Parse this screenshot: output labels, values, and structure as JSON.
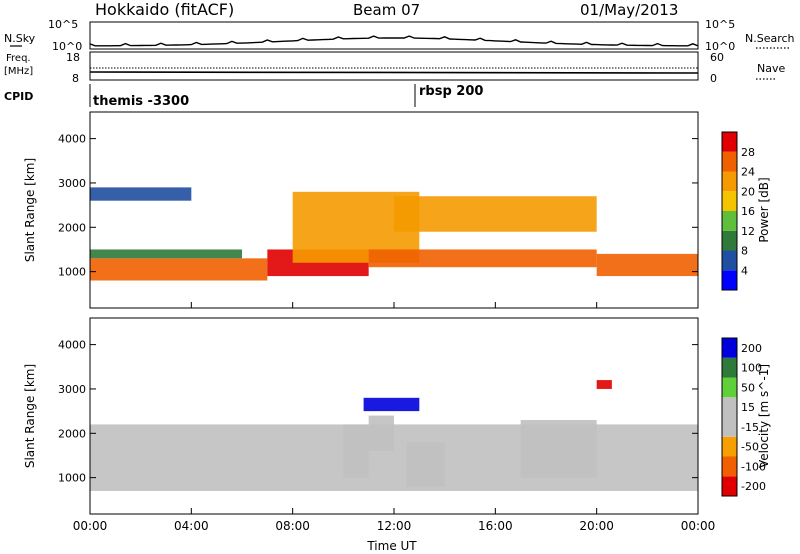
{
  "header": {
    "station": "Hokkaido (fitACF)",
    "beam": "Beam 07",
    "date": "01/May/2013"
  },
  "top_panels": {
    "nsky_label": "N.Sky",
    "nsearch_label": "N.Search",
    "nsky_ticks": [
      "10^5",
      "10^0"
    ],
    "nsearch_ticks": [
      "10^5",
      "10^0"
    ],
    "freq_label_1": "Freq.",
    "freq_label_2": "[MHz]",
    "freq_ticks": [
      "18",
      "8"
    ],
    "nave_label": "Nave",
    "nave_ticks": [
      "60",
      "0"
    ],
    "cpid_label": "CPID",
    "cpid_entries": [
      "themis -3300",
      "rbsp 200"
    ]
  },
  "colors": {
    "power_scale": [
      "#0000ff",
      "#1f4fa0",
      "#2f7a3a",
      "#5fbf3a",
      "#f5c400",
      "#f59a00",
      "#f06000",
      "#e00000"
    ],
    "velocity_scale": [
      "#e00000",
      "#f06000",
      "#f5a000",
      "#c0c0c0",
      "#c0c0c0",
      "#5fcf3a",
      "#2f7a3a",
      "#0000dd"
    ],
    "ground_scatter": "#c0c0c0"
  },
  "chart_data": [
    {
      "type": "heatmap",
      "title": "",
      "xlabel": "Time UT",
      "ylabel": "Slant Range [km]",
      "colorbar_label": "Power [dB]",
      "colorbar_ticks": [
        "4",
        "8",
        "12",
        "16",
        "20",
        "24",
        "28"
      ],
      "colorbar_range": [
        0,
        32
      ],
      "xlim": [
        0,
        24
      ],
      "ylim": [
        180,
        4600
      ],
      "yticks": [
        "1000",
        "2000",
        "3000",
        "4000"
      ],
      "xticks": [
        "00:00",
        "04:00",
        "08:00",
        "12:00",
        "16:00",
        "20:00",
        "00:00"
      ],
      "bands": [
        {
          "t0": 0,
          "t1": 7,
          "r0": 800,
          "r1": 1300,
          "value": 26
        },
        {
          "t0": 7,
          "t1": 11,
          "r0": 900,
          "r1": 1500,
          "value": 28
        },
        {
          "t0": 8,
          "t1": 13,
          "r0": 1200,
          "r1": 2800,
          "value": 22
        },
        {
          "t0": 11,
          "t1": 20,
          "r0": 1100,
          "r1": 1500,
          "value": 26
        },
        {
          "t0": 12,
          "t1": 20,
          "r0": 1900,
          "r1": 2700,
          "value": 20
        },
        {
          "t0": 20,
          "t1": 24,
          "r0": 900,
          "r1": 1400,
          "value": 24
        },
        {
          "t0": 0,
          "t1": 4,
          "r0": 2600,
          "r1": 2900,
          "value": 6
        },
        {
          "t0": 0,
          "t1": 6,
          "r0": 1300,
          "r1": 1500,
          "value": 8
        }
      ]
    },
    {
      "type": "heatmap",
      "title": "",
      "xlabel": "Time UT",
      "ylabel": "Slant Range [km]",
      "colorbar_label": "Velocity [m s^-1]",
      "colorbar_ticks": [
        "200",
        "100",
        "50",
        "15",
        "-15",
        "-50",
        "-100",
        "-200"
      ],
      "colorbar_range": [
        -250,
        250
      ],
      "xlim": [
        0,
        24
      ],
      "ylim": [
        180,
        4600
      ],
      "yticks": [
        "1000",
        "2000",
        "3000",
        "4000"
      ],
      "xticks": [
        "00:00",
        "04:00",
        "08:00",
        "12:00",
        "16:00",
        "20:00",
        "00:00"
      ],
      "bands": [
        {
          "t0": 0,
          "t1": 24,
          "r0": 700,
          "r1": 2200,
          "value": 0
        },
        {
          "t0": 10.8,
          "t1": 13,
          "r0": 2500,
          "r1": 2800,
          "value": 220
        },
        {
          "t0": 10,
          "t1": 11,
          "r0": 1000,
          "r1": 2200,
          "value": -60
        },
        {
          "t0": 11,
          "t1": 12,
          "r0": 1600,
          "r1": 2400,
          "value": 40
        },
        {
          "t0": 12.5,
          "t1": 14,
          "r0": 800,
          "r1": 1800,
          "value": -60
        },
        {
          "t0": 17,
          "t1": 20,
          "r0": 1000,
          "r1": 2300,
          "value": 45
        },
        {
          "t0": 20,
          "t1": 20.6,
          "r0": 3000,
          "r1": 3200,
          "value": -220
        }
      ]
    }
  ]
}
